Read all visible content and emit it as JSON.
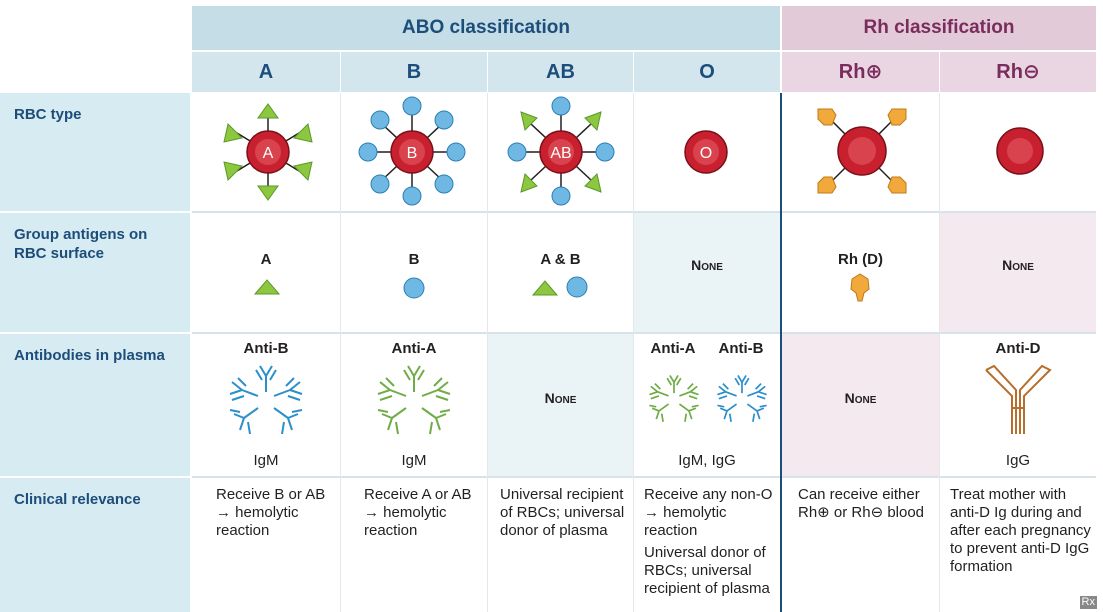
{
  "headers": {
    "abo": "ABO classification",
    "rh": "Rh classification"
  },
  "columns": [
    "A",
    "B",
    "AB",
    "O",
    "Rh⊕",
    "Rh⊖"
  ],
  "row_labels": {
    "rbc_type": "RBC type",
    "antigens": "Group antigens on RBC surface",
    "antibodies": "Antibodies in plasma",
    "clinical": "Clinical relevance"
  },
  "rbc_labels": [
    "A",
    "B",
    "AB",
    "O"
  ],
  "antigens": [
    "A",
    "B",
    "A & B",
    "None",
    "Rh (D)",
    "None"
  ],
  "antibodies": {
    "a_name": "Anti-B",
    "a_type": "IgM",
    "b_name": "Anti-A",
    "b_type": "IgM",
    "ab_none": "None",
    "o_name1": "Anti-A",
    "o_name2": "Anti-B",
    "o_type": "IgM, IgG",
    "rhpos_none": "None",
    "rhneg_name": "Anti-D",
    "rhneg_type": "IgG"
  },
  "clinical": {
    "a": "Receive B or AB → hemolytic reaction",
    "b": "Receive A or AB → hemolytic reaction",
    "ab": "Universal recipient of RBCs; universal donor of plasma",
    "o1": "Receive any non-O → hemolytic reaction",
    "o2": "Universal donor of RBCs; universal recipient of plasma",
    "rhpos": "Can receive either Rh⊕ or Rh⊖ blood",
    "rhneg": "Treat mother with anti-D Ig during and after each pregnancy to prevent anti-D IgG formation"
  },
  "colors": {
    "rbc": "#c8202f",
    "antigen_a": "#8dc63f",
    "antigen_b": "#6fb8e4",
    "antigen_rh": "#f2a93b",
    "antibody_blue": "#2b8fc9",
    "antibody_green": "#6fac46",
    "antibody_brown": "#b86e2a",
    "abo_header": "#1d4d7a",
    "rh_header": "#7a2c5c"
  },
  "footer_mark": "Rx"
}
